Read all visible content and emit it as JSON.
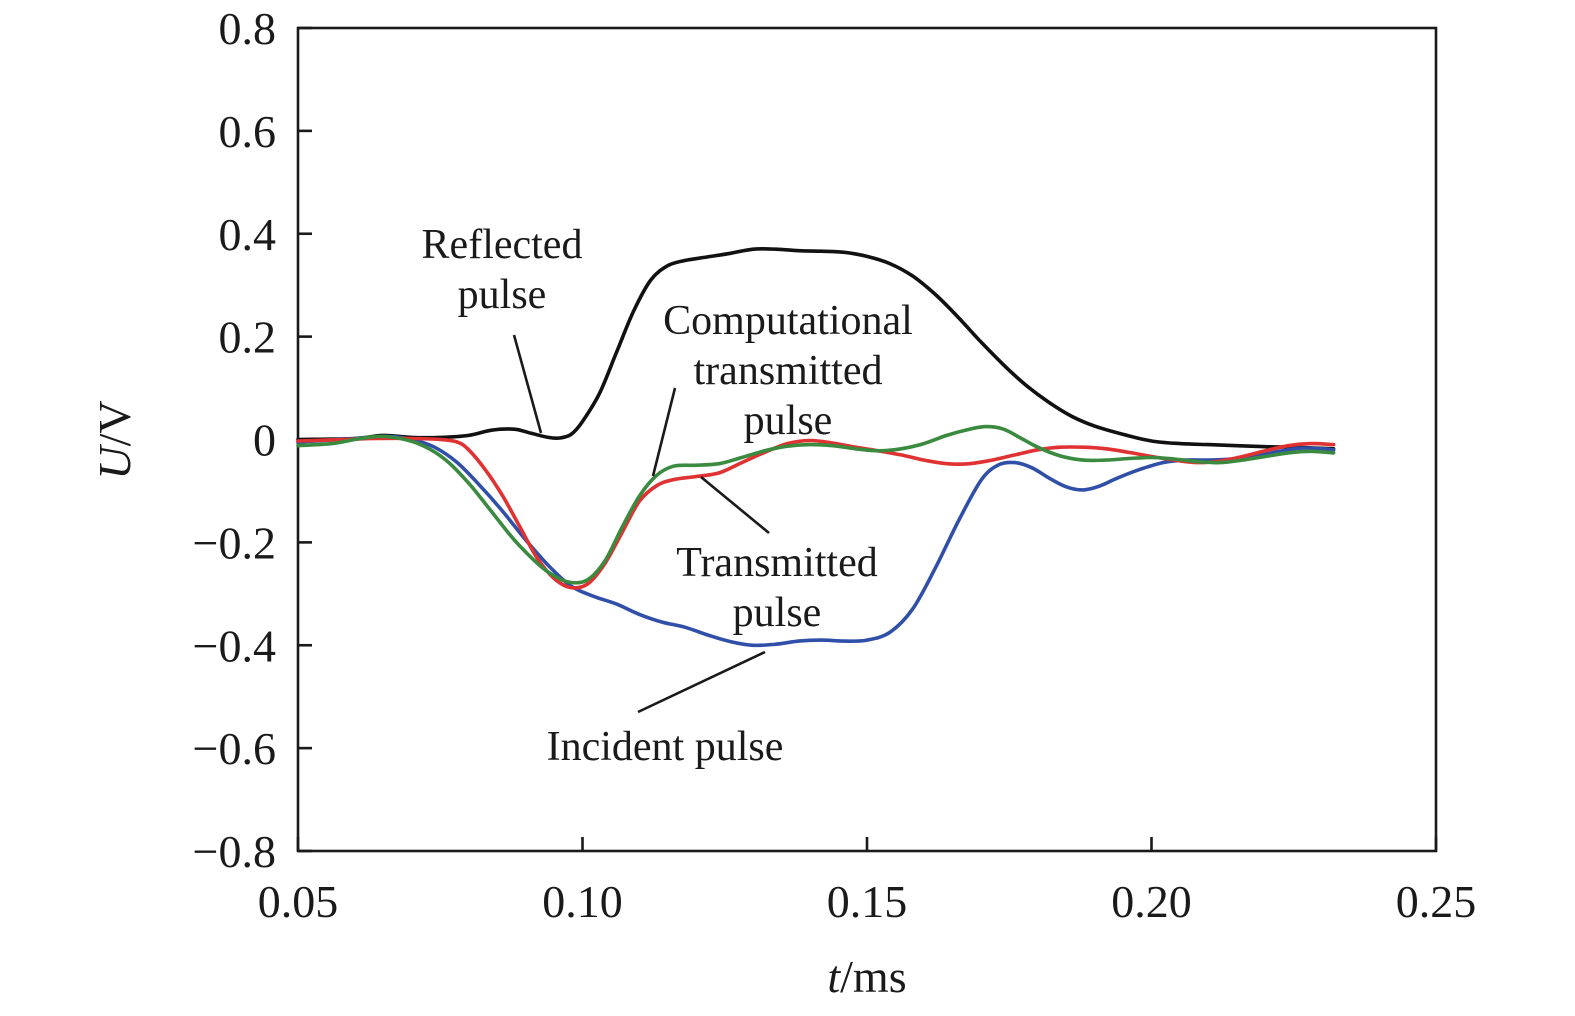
{
  "chart_data": {
    "type": "line",
    "title": "",
    "xlabel": {
      "var": "t",
      "unit": "/ms"
    },
    "ylabel": {
      "var": "U",
      "unit": "/V"
    },
    "xlim": [
      0.05,
      0.25
    ],
    "ylim": [
      -0.8,
      0.8
    ],
    "x_ticks": [
      0.05,
      0.1,
      0.15,
      0.2,
      0.25
    ],
    "x_tick_labels": [
      "0.05",
      "0.10",
      "0.15",
      "0.20",
      "0.25"
    ],
    "y_ticks": [
      -0.8,
      -0.6,
      -0.4,
      -0.2,
      0,
      0.2,
      0.4,
      0.6,
      0.8
    ],
    "y_tick_labels": [
      "−0.8",
      "−0.6",
      "−0.4",
      "−0.2",
      "0",
      "0.2",
      "0.4",
      "0.6",
      "0.8"
    ],
    "grid": false,
    "legend": "none",
    "series": [
      {
        "name": "Reflected pulse",
        "color": "#111111",
        "points": [
          [
            0.05,
            0
          ],
          [
            0.06,
            0.002
          ],
          [
            0.065,
            0.008
          ],
          [
            0.07,
            0.004
          ],
          [
            0.075,
            0.004
          ],
          [
            0.08,
            0.008
          ],
          [
            0.084,
            0.018
          ],
          [
            0.088,
            0.02
          ],
          [
            0.091,
            0.012
          ],
          [
            0.094,
            0.004
          ],
          [
            0.096,
            0.003
          ],
          [
            0.098,
            0.01
          ],
          [
            0.1,
            0.035
          ],
          [
            0.103,
            0.09
          ],
          [
            0.106,
            0.17
          ],
          [
            0.109,
            0.25
          ],
          [
            0.112,
            0.31
          ],
          [
            0.115,
            0.338
          ],
          [
            0.118,
            0.348
          ],
          [
            0.122,
            0.355
          ],
          [
            0.126,
            0.362
          ],
          [
            0.13,
            0.37
          ],
          [
            0.134,
            0.37
          ],
          [
            0.138,
            0.367
          ],
          [
            0.142,
            0.366
          ],
          [
            0.146,
            0.364
          ],
          [
            0.15,
            0.356
          ],
          [
            0.154,
            0.342
          ],
          [
            0.158,
            0.318
          ],
          [
            0.162,
            0.282
          ],
          [
            0.166,
            0.238
          ],
          [
            0.17,
            0.19
          ],
          [
            0.174,
            0.145
          ],
          [
            0.178,
            0.105
          ],
          [
            0.182,
            0.072
          ],
          [
            0.186,
            0.045
          ],
          [
            0.19,
            0.026
          ],
          [
            0.195,
            0.01
          ],
          [
            0.2,
            -0.003
          ],
          [
            0.205,
            -0.008
          ],
          [
            0.21,
            -0.01
          ],
          [
            0.215,
            -0.012
          ],
          [
            0.22,
            -0.014
          ],
          [
            0.225,
            -0.015
          ],
          [
            0.232,
            -0.018
          ]
        ]
      },
      {
        "name": "Incident pulse",
        "color": "#2f4fa8",
        "points": [
          [
            0.05,
            -0.005
          ],
          [
            0.06,
            0.002
          ],
          [
            0.066,
            0.006
          ],
          [
            0.07,
            0.0
          ],
          [
            0.074,
            -0.015
          ],
          [
            0.078,
            -0.045
          ],
          [
            0.082,
            -0.09
          ],
          [
            0.086,
            -0.14
          ],
          [
            0.09,
            -0.195
          ],
          [
            0.094,
            -0.245
          ],
          [
            0.098,
            -0.285
          ],
          [
            0.102,
            -0.305
          ],
          [
            0.106,
            -0.32
          ],
          [
            0.11,
            -0.34
          ],
          [
            0.114,
            -0.355
          ],
          [
            0.118,
            -0.365
          ],
          [
            0.122,
            -0.38
          ],
          [
            0.126,
            -0.393
          ],
          [
            0.13,
            -0.4
          ],
          [
            0.134,
            -0.398
          ],
          [
            0.138,
            -0.392
          ],
          [
            0.142,
            -0.39
          ],
          [
            0.146,
            -0.392
          ],
          [
            0.15,
            -0.39
          ],
          [
            0.154,
            -0.375
          ],
          [
            0.158,
            -0.33
          ],
          [
            0.162,
            -0.25
          ],
          [
            0.166,
            -0.16
          ],
          [
            0.17,
            -0.08
          ],
          [
            0.173,
            -0.05
          ],
          [
            0.176,
            -0.045
          ],
          [
            0.179,
            -0.055
          ],
          [
            0.182,
            -0.075
          ],
          [
            0.185,
            -0.092
          ],
          [
            0.188,
            -0.098
          ],
          [
            0.191,
            -0.09
          ],
          [
            0.194,
            -0.075
          ],
          [
            0.198,
            -0.058
          ],
          [
            0.202,
            -0.045
          ],
          [
            0.206,
            -0.04
          ],
          [
            0.21,
            -0.04
          ],
          [
            0.214,
            -0.038
          ],
          [
            0.218,
            -0.033
          ],
          [
            0.222,
            -0.024
          ],
          [
            0.226,
            -0.017
          ],
          [
            0.23,
            -0.018
          ],
          [
            0.232,
            -0.02
          ]
        ]
      },
      {
        "name": "Transmitted pulse",
        "color": "#e03232",
        "points": [
          [
            0.05,
            -0.003
          ],
          [
            0.058,
            0.0
          ],
          [
            0.064,
            0.002
          ],
          [
            0.07,
            0.002
          ],
          [
            0.075,
            0.0
          ],
          [
            0.078,
            -0.005
          ],
          [
            0.08,
            -0.02
          ],
          [
            0.083,
            -0.06
          ],
          [
            0.086,
            -0.11
          ],
          [
            0.089,
            -0.17
          ],
          [
            0.092,
            -0.23
          ],
          [
            0.095,
            -0.27
          ],
          [
            0.098,
            -0.288
          ],
          [
            0.101,
            -0.28
          ],
          [
            0.104,
            -0.24
          ],
          [
            0.107,
            -0.18
          ],
          [
            0.11,
            -0.12
          ],
          [
            0.113,
            -0.09
          ],
          [
            0.116,
            -0.078
          ],
          [
            0.12,
            -0.072
          ],
          [
            0.124,
            -0.065
          ],
          [
            0.128,
            -0.045
          ],
          [
            0.132,
            -0.025
          ],
          [
            0.136,
            -0.008
          ],
          [
            0.14,
            -0.002
          ],
          [
            0.144,
            -0.007
          ],
          [
            0.148,
            -0.015
          ],
          [
            0.152,
            -0.022
          ],
          [
            0.156,
            -0.03
          ],
          [
            0.16,
            -0.04
          ],
          [
            0.164,
            -0.047
          ],
          [
            0.168,
            -0.047
          ],
          [
            0.172,
            -0.04
          ],
          [
            0.176,
            -0.03
          ],
          [
            0.18,
            -0.02
          ],
          [
            0.184,
            -0.015
          ],
          [
            0.188,
            -0.015
          ],
          [
            0.192,
            -0.018
          ],
          [
            0.196,
            -0.025
          ],
          [
            0.2,
            -0.033
          ],
          [
            0.204,
            -0.04
          ],
          [
            0.208,
            -0.045
          ],
          [
            0.212,
            -0.042
          ],
          [
            0.216,
            -0.033
          ],
          [
            0.22,
            -0.022
          ],
          [
            0.224,
            -0.012
          ],
          [
            0.228,
            -0.008
          ],
          [
            0.232,
            -0.01
          ]
        ]
      },
      {
        "name": "Computational transmitted pulse",
        "color": "#3a8a3f",
        "points": [
          [
            0.05,
            -0.012
          ],
          [
            0.056,
            -0.008
          ],
          [
            0.06,
            0.0
          ],
          [
            0.064,
            0.006
          ],
          [
            0.068,
            0.002
          ],
          [
            0.072,
            -0.012
          ],
          [
            0.076,
            -0.04
          ],
          [
            0.08,
            -0.085
          ],
          [
            0.084,
            -0.14
          ],
          [
            0.088,
            -0.195
          ],
          [
            0.092,
            -0.24
          ],
          [
            0.095,
            -0.265
          ],
          [
            0.098,
            -0.278
          ],
          [
            0.101,
            -0.272
          ],
          [
            0.104,
            -0.235
          ],
          [
            0.107,
            -0.17
          ],
          [
            0.11,
            -0.11
          ],
          [
            0.113,
            -0.07
          ],
          [
            0.116,
            -0.052
          ],
          [
            0.12,
            -0.05
          ],
          [
            0.124,
            -0.047
          ],
          [
            0.128,
            -0.035
          ],
          [
            0.132,
            -0.022
          ],
          [
            0.136,
            -0.013
          ],
          [
            0.14,
            -0.01
          ],
          [
            0.144,
            -0.012
          ],
          [
            0.148,
            -0.018
          ],
          [
            0.152,
            -0.022
          ],
          [
            0.156,
            -0.018
          ],
          [
            0.16,
            -0.008
          ],
          [
            0.164,
            0.008
          ],
          [
            0.168,
            0.02
          ],
          [
            0.171,
            0.025
          ],
          [
            0.174,
            0.02
          ],
          [
            0.177,
            0.003
          ],
          [
            0.18,
            -0.015
          ],
          [
            0.184,
            -0.032
          ],
          [
            0.188,
            -0.04
          ],
          [
            0.192,
            -0.04
          ],
          [
            0.196,
            -0.037
          ],
          [
            0.2,
            -0.035
          ],
          [
            0.204,
            -0.038
          ],
          [
            0.208,
            -0.043
          ],
          [
            0.212,
            -0.045
          ],
          [
            0.216,
            -0.04
          ],
          [
            0.22,
            -0.033
          ],
          [
            0.224,
            -0.026
          ],
          [
            0.228,
            -0.023
          ],
          [
            0.232,
            -0.026
          ]
        ]
      }
    ],
    "annotations": [
      {
        "lines": [
          "Reflected",
          "pulse"
        ],
        "target": [
          0.094,
          0.004
        ]
      },
      {
        "lines": [
          "Computational",
          "transmitted",
          "pulse"
        ],
        "target": [
          0.112,
          -0.075
        ]
      },
      {
        "lines": [
          "Transmitted",
          "pulse"
        ],
        "target": [
          0.119,
          -0.078
        ]
      },
      {
        "lines": [
          "Incident pulse"
        ],
        "target": [
          0.135,
          -0.4
        ]
      }
    ]
  }
}
